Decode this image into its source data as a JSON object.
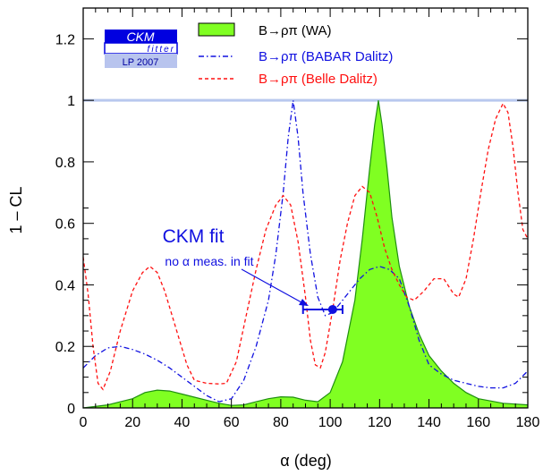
{
  "chart_data": {
    "type": "line",
    "xlabel": "α    (deg)",
    "ylabel": "1 – CL",
    "xlim": [
      0,
      180
    ],
    "ylim": [
      0,
      1.3
    ],
    "x_ticks": [
      0,
      20,
      40,
      60,
      80,
      100,
      120,
      140,
      160,
      180
    ],
    "y_ticks": [
      0,
      0.2,
      0.4,
      0.6,
      0.8,
      1,
      1.2
    ],
    "x_tick_labels": [
      "0",
      "20",
      "40",
      "60",
      "80",
      "100",
      "120",
      "140",
      "160",
      "180"
    ],
    "y_tick_labels": [
      "0",
      "0.2",
      "0.4",
      "0.6",
      "0.8",
      "1",
      "1.2"
    ],
    "reference_line": {
      "y": 1,
      "color": "#b8c8ee"
    },
    "series": [
      {
        "name": "B→ρπ (WA)",
        "style": "filled-area",
        "fill": "#80ff22",
        "stroke": "#1f8f10",
        "points": [
          [
            0,
            0
          ],
          [
            10,
            0.01
          ],
          [
            20,
            0.03
          ],
          [
            25,
            0.05
          ],
          [
            30,
            0.058
          ],
          [
            35,
            0.055
          ],
          [
            40,
            0.045
          ],
          [
            45,
            0.035
          ],
          [
            50,
            0.025
          ],
          [
            55,
            0.015
          ],
          [
            60,
            0.008
          ],
          [
            65,
            0.01
          ],
          [
            70,
            0.02
          ],
          [
            75,
            0.03
          ],
          [
            80,
            0.036
          ],
          [
            85,
            0.035
          ],
          [
            90,
            0.025
          ],
          [
            95,
            0.02
          ],
          [
            100,
            0.05
          ],
          [
            105,
            0.15
          ],
          [
            110,
            0.35
          ],
          [
            113,
            0.55
          ],
          [
            116,
            0.78
          ],
          [
            118,
            0.92
          ],
          [
            119.5,
            1.0
          ],
          [
            121,
            0.92
          ],
          [
            123,
            0.78
          ],
          [
            125,
            0.62
          ],
          [
            128,
            0.46
          ],
          [
            132,
            0.33
          ],
          [
            136,
            0.24
          ],
          [
            140,
            0.17
          ],
          [
            145,
            0.12
          ],
          [
            150,
            0.08
          ],
          [
            155,
            0.05
          ],
          [
            160,
            0.03
          ],
          [
            170,
            0.015
          ],
          [
            180,
            0.01
          ]
        ]
      },
      {
        "name": "B→ρπ (BABAR Dalitz)",
        "style": "dash-dot",
        "color": "#1010e0",
        "points": [
          [
            0,
            0.13
          ],
          [
            5,
            0.17
          ],
          [
            10,
            0.195
          ],
          [
            15,
            0.2
          ],
          [
            20,
            0.19
          ],
          [
            25,
            0.175
          ],
          [
            30,
            0.155
          ],
          [
            35,
            0.13
          ],
          [
            40,
            0.1
          ],
          [
            45,
            0.07
          ],
          [
            50,
            0.04
          ],
          [
            55,
            0.02
          ],
          [
            60,
            0.03
          ],
          [
            65,
            0.09
          ],
          [
            70,
            0.2
          ],
          [
            75,
            0.35
          ],
          [
            78,
            0.5
          ],
          [
            81,
            0.7
          ],
          [
            83,
            0.88
          ],
          [
            85,
            1.0
          ],
          [
            87,
            0.88
          ],
          [
            89,
            0.7
          ],
          [
            92,
            0.5
          ],
          [
            95,
            0.36
          ],
          [
            98,
            0.3
          ],
          [
            101,
            0.31
          ],
          [
            104,
            0.34
          ],
          [
            108,
            0.38
          ],
          [
            112,
            0.42
          ],
          [
            116,
            0.45
          ],
          [
            120,
            0.46
          ],
          [
            124,
            0.45
          ],
          [
            128,
            0.42
          ],
          [
            132,
            0.33
          ],
          [
            136,
            0.22
          ],
          [
            140,
            0.14
          ],
          [
            145,
            0.11
          ],
          [
            150,
            0.09
          ],
          [
            155,
            0.08
          ],
          [
            160,
            0.07
          ],
          [
            165,
            0.065
          ],
          [
            170,
            0.065
          ],
          [
            175,
            0.08
          ],
          [
            180,
            0.12
          ]
        ]
      },
      {
        "name": "B→ρπ (Belle Dalitz)",
        "style": "dashed",
        "color": "#ff1010",
        "points": [
          [
            0,
            0.49
          ],
          [
            2,
            0.37
          ],
          [
            4,
            0.2
          ],
          [
            6,
            0.08
          ],
          [
            8,
            0.06
          ],
          [
            11,
            0.12
          ],
          [
            15,
            0.25
          ],
          [
            20,
            0.38
          ],
          [
            24,
            0.44
          ],
          [
            27,
            0.46
          ],
          [
            30,
            0.44
          ],
          [
            33,
            0.38
          ],
          [
            36,
            0.3
          ],
          [
            39,
            0.22
          ],
          [
            42,
            0.14
          ],
          [
            45,
            0.09
          ],
          [
            50,
            0.08
          ],
          [
            55,
            0.078
          ],
          [
            58,
            0.08
          ],
          [
            62,
            0.15
          ],
          [
            66,
            0.3
          ],
          [
            70,
            0.45
          ],
          [
            74,
            0.58
          ],
          [
            78,
            0.66
          ],
          [
            81,
            0.69
          ],
          [
            84,
            0.66
          ],
          [
            87,
            0.54
          ],
          [
            90,
            0.36
          ],
          [
            92,
            0.22
          ],
          [
            94,
            0.14
          ],
          [
            96,
            0.13
          ],
          [
            98,
            0.18
          ],
          [
            101,
            0.32
          ],
          [
            104,
            0.48
          ],
          [
            107,
            0.6
          ],
          [
            110,
            0.69
          ],
          [
            113,
            0.72
          ],
          [
            116,
            0.7
          ],
          [
            119,
            0.62
          ],
          [
            122,
            0.52
          ],
          [
            125,
            0.45
          ],
          [
            128,
            0.4
          ],
          [
            131,
            0.36
          ],
          [
            134,
            0.35
          ],
          [
            138,
            0.38
          ],
          [
            142,
            0.42
          ],
          [
            146,
            0.42
          ],
          [
            150,
            0.37
          ],
          [
            152,
            0.36
          ],
          [
            155,
            0.42
          ],
          [
            158,
            0.55
          ],
          [
            161,
            0.7
          ],
          [
            164,
            0.84
          ],
          [
            167,
            0.94
          ],
          [
            170,
            0.99
          ],
          [
            172,
            0.96
          ],
          [
            174,
            0.85
          ],
          [
            176,
            0.7
          ],
          [
            178,
            0.58
          ],
          [
            180,
            0.55
          ]
        ]
      }
    ],
    "ckm_fit": {
      "label": "CKM fit",
      "sublabel": "no α meas. in fit",
      "central": 101,
      "cl": 0.32,
      "err_low": 89,
      "err_high": 105,
      "color": "#1010e0"
    },
    "legend": {
      "position": "top-center",
      "entries": [
        "B→ρπ (WA)",
        "B→ρπ (BABAR Dalitz)",
        "B→ρπ (Belle Dalitz)"
      ]
    }
  },
  "logo": {
    "title": "CKM",
    "subtitle": "fitter",
    "event": "LP 2007"
  }
}
